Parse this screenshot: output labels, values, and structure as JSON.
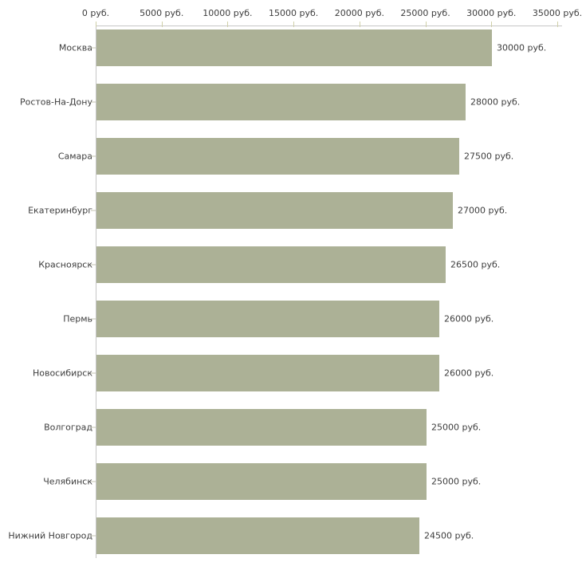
{
  "chart_data": {
    "type": "bar",
    "orientation": "horizontal",
    "unit": "руб.",
    "categories": [
      "Москва",
      "Ростов-На-Дону",
      "Самара",
      "Екатеринбург",
      "Красноярск",
      "Пермь",
      "Новосибирск",
      "Волгоград",
      "Челябинск",
      "Нижний Новгород"
    ],
    "values": [
      30000,
      28000,
      27500,
      27000,
      26500,
      26000,
      26000,
      25000,
      25000,
      24500
    ],
    "value_labels": [
      "30000 руб.",
      "28000 руб.",
      "27500 руб.",
      "27000 руб.",
      "26500 руб.",
      "26000 руб.",
      "26000 руб.",
      "25000 руб.",
      "25000 руб.",
      "24500 руб."
    ],
    "x_axis": {
      "position": "top",
      "ticks": [
        0,
        5000,
        10000,
        15000,
        20000,
        25000,
        30000,
        35000
      ],
      "tick_labels": [
        "0 руб.",
        "5000 руб.",
        "10000 руб.",
        "15000 руб.",
        "20000 руб.",
        "25000 руб.",
        "30000 руб.",
        "35000 руб."
      ]
    },
    "xlim": [
      0,
      35000
    ],
    "grid": false,
    "legend": false,
    "colors": {
      "bar": "#acb196",
      "axis": "#c6c6c6",
      "x_tick": "#cfcfa8",
      "y_tick": "#c3c3b0",
      "text": "#3d3d3d",
      "background": "#ffffff"
    }
  }
}
